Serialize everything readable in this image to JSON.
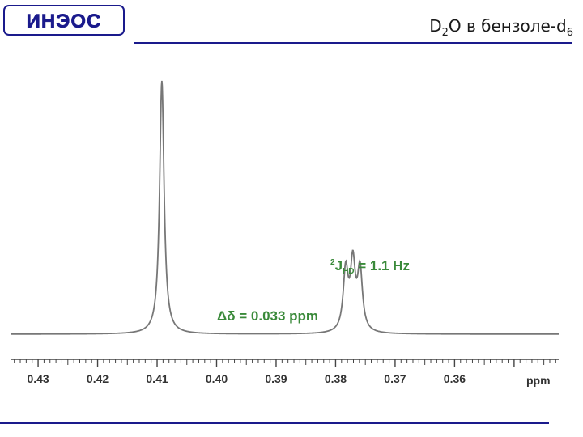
{
  "header": {
    "logo_text": "ИНЭОС",
    "title_main": "D",
    "title_sub1": "2",
    "title_mid": "O в бензоле-d",
    "title_sub2": "6"
  },
  "colors": {
    "accent_line": "#1a1a8c",
    "spectrum": "#777777",
    "annotation": "#3a8a3a",
    "axis": "#444444"
  },
  "chart_data": {
    "type": "line",
    "title": "",
    "xlabel": "ppm",
    "ylabel": "",
    "x_reversed": true,
    "xlim": [
      0.3425,
      0.4345
    ],
    "ylim": [
      0,
      1
    ],
    "x_ticks": [
      0.43,
      0.42,
      0.41,
      0.4,
      0.39,
      0.38,
      0.37,
      0.36
    ],
    "x_tick_labels": [
      "0.43",
      "0.42",
      "0.41",
      "0.40",
      "0.39",
      "0.38",
      "0.37",
      "0.36"
    ],
    "x_unit_label": "ppm",
    "series": [
      {
        "peaks": [
          {
            "center": 0.4092,
            "height": 0.96,
            "width": 0.00045
          },
          {
            "center": 0.3783,
            "height": 0.23,
            "width": 0.0005
          },
          {
            "center": 0.3771,
            "height": 0.25,
            "width": 0.0005
          },
          {
            "center": 0.3759,
            "height": 0.23,
            "width": 0.0005
          }
        ],
        "baseline": 0.04
      }
    ],
    "annotations": [
      {
        "label": "Δδ = 0.033 ppm"
      },
      {
        "label_prefix": "2",
        "label_j": "J",
        "label_sub": "HD",
        "label_rest": " = 1.1 Hz"
      }
    ]
  }
}
